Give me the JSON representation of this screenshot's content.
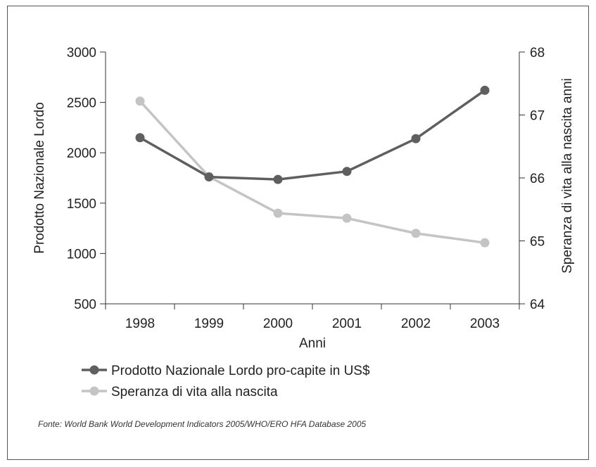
{
  "chart_data": {
    "type": "line",
    "categories": [
      "1998",
      "1999",
      "2000",
      "2001",
      "2002",
      "2003"
    ],
    "xlabel": "Anni",
    "ylabel_left": "Prodotto Nazionale Lordo",
    "ylabel_right": "Speranza di vita alla nascita anni",
    "y_left": {
      "lim": [
        500,
        3000
      ],
      "ticks": [
        500,
        1000,
        1500,
        2000,
        2500,
        3000
      ]
    },
    "y_right": {
      "lim": [
        64,
        68
      ],
      "ticks": [
        64,
        65,
        66,
        67,
        68
      ]
    },
    "series": [
      {
        "name": "Prodotto Nazionale Lordo pro-capite in US$",
        "axis": "left",
        "color": "#5f5f5f",
        "values": [
          2150,
          1760,
          1735,
          1815,
          2140,
          2620
        ]
      },
      {
        "name": "Speranza di vita alla nascita",
        "axis": "right",
        "color": "#c4c4c4",
        "values": [
          67.22,
          66.02,
          65.44,
          65.36,
          65.12,
          64.97
        ]
      }
    ],
    "grid": false,
    "legend": "bottom-left"
  },
  "source_note": "Fonte: World Bank World Development Indicators 2005/WHO/ERO HFA Database 2005"
}
